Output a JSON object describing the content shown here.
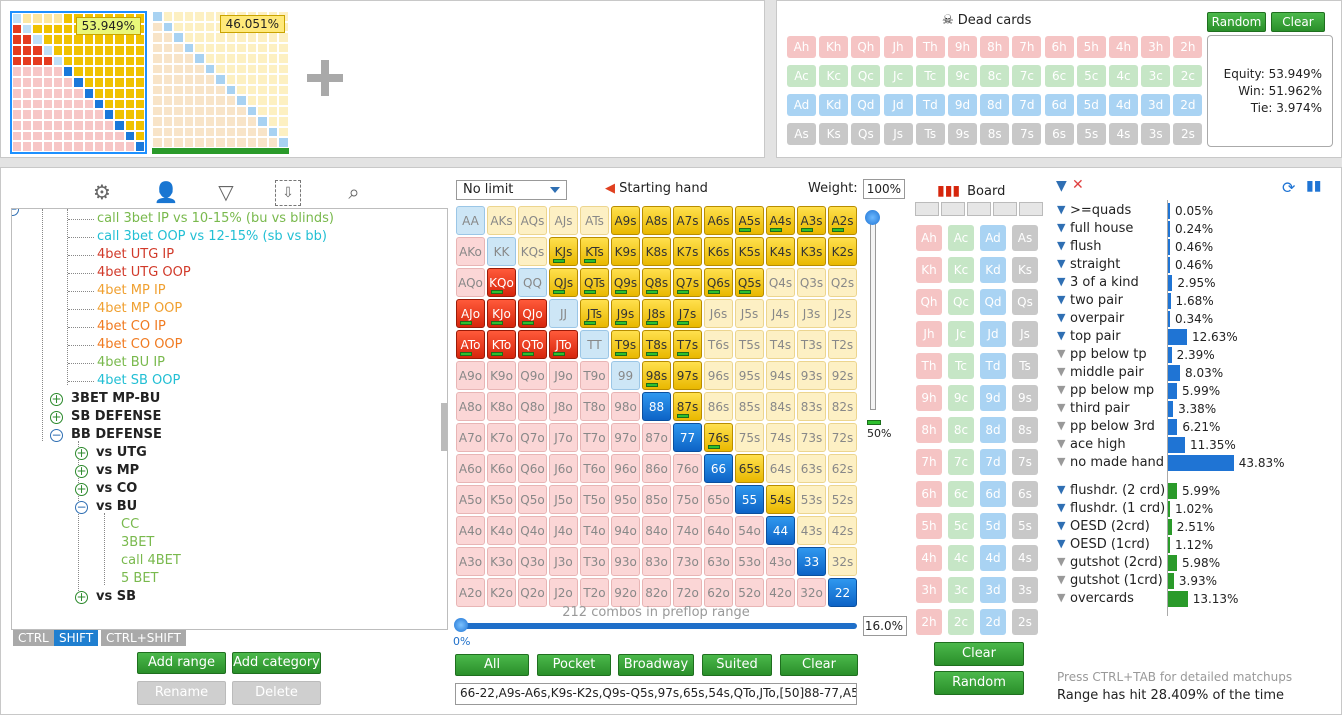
{
  "thumbs": {
    "eq1": "53.949%",
    "eq2": "46.051%"
  },
  "dead": {
    "title": "Dead cards",
    "random": "Random",
    "clear": "Clear",
    "rows": [
      [
        "Ah",
        "Kh",
        "Qh",
        "Jh",
        "Th",
        "9h",
        "8h",
        "7h",
        "6h",
        "5h",
        "4h",
        "3h",
        "2h"
      ],
      [
        "Ac",
        "Kc",
        "Qc",
        "Jc",
        "Tc",
        "9c",
        "8c",
        "7c",
        "6c",
        "5c",
        "4c",
        "3c",
        "2c"
      ],
      [
        "Ad",
        "Kd",
        "Qd",
        "Jd",
        "Td",
        "9d",
        "8d",
        "7d",
        "6d",
        "5d",
        "4d",
        "3d",
        "2d"
      ],
      [
        "As",
        "Ks",
        "Qs",
        "Js",
        "Ts",
        "9s",
        "8s",
        "7s",
        "6s",
        "5s",
        "4s",
        "3s",
        "2s"
      ]
    ],
    "equity": "Equity: 53.949%",
    "win": "Win: 51.962%",
    "tie": "Tie: 3.974%"
  },
  "tree": {
    "items": [
      "call 3bet IP vs 10-15% (bu vs blinds)",
      "call 3bet OOP vs 12-15% (sb vs bb)",
      "4bet UTG IP",
      "4bet UTG OOP",
      "4bet MP IP",
      "4bet MP OOP",
      "4bet CO IP",
      "4bet CO OOP",
      "4bet BU IP",
      "4bet SB OOP"
    ],
    "groups": [
      "3BET MP-BU",
      "SB DEFENSE",
      "BB DEFENSE",
      "vs UTG",
      "vs MP",
      "vs CO",
      "vs BU",
      "CC",
      "3BET",
      "call 4BET",
      "5 BET",
      "vs SB"
    ],
    "tabs": [
      "CTRL",
      "SHIFT",
      "CTRL+SHIFT"
    ],
    "add_range": "Add range",
    "add_category": "Add category",
    "rename": "Rename",
    "delete": "Delete"
  },
  "range": {
    "limit": "No limit",
    "starting_hand": "Starting hand",
    "weight_label": "Weight:",
    "weight": "100%",
    "slider_pct": "50%",
    "combos": "212 combos in preflop range",
    "min": "0%",
    "pct": "16.0%",
    "buttons": [
      "All",
      "Pocket",
      "Broadway",
      "Suited",
      "Clear"
    ],
    "text": "66-22,A9s-A6s,K9s-K2s,Q9s-Q5s,97s,65s,54s,QTo,JTo,[50]88-77,A5"
  },
  "board": {
    "title": "Board",
    "clear": "Clear",
    "random": "Random",
    "rows": [
      [
        "Ah",
        "Ac",
        "Ad",
        "As"
      ],
      [
        "Kh",
        "Kc",
        "Kd",
        "Ks"
      ],
      [
        "Qh",
        "Qc",
        "Qd",
        "Qs"
      ],
      [
        "Jh",
        "Jc",
        "Jd",
        "Js"
      ],
      [
        "Th",
        "Tc",
        "Td",
        "Ts"
      ],
      [
        "9h",
        "9c",
        "9d",
        "9s"
      ],
      [
        "8h",
        "8c",
        "8d",
        "8s"
      ],
      [
        "7h",
        "7c",
        "7d",
        "7s"
      ],
      [
        "6h",
        "6c",
        "6d",
        "6s"
      ],
      [
        "5h",
        "5c",
        "5d",
        "5s"
      ],
      [
        "4h",
        "4c",
        "4d",
        "4s"
      ],
      [
        "3h",
        "3c",
        "3d",
        "3s"
      ],
      [
        "2h",
        "2c",
        "2d",
        "2s"
      ]
    ]
  },
  "stats": {
    "made": [
      [
        "&gt;=quads",
        "0.05%",
        0.05
      ],
      [
        "full house",
        "0.24%",
        0.24
      ],
      [
        "flush",
        "0.46%",
        0.46
      ],
      [
        "straight",
        "0.46%",
        0.46
      ],
      [
        "3 of a kind",
        "2.95%",
        2.95
      ],
      [
        "two pair",
        "1.68%",
        1.68
      ],
      [
        "overpair",
        "0.34%",
        0.34
      ],
      [
        "top pair",
        "12.63%",
        12.63
      ],
      [
        "pp below tp",
        "2.39%",
        2.39
      ],
      [
        "middle pair",
        "8.03%",
        8.03
      ],
      [
        "pp below mp",
        "5.99%",
        5.99
      ],
      [
        "third pair",
        "3.38%",
        3.38
      ],
      [
        "pp below 3rd",
        "6.21%",
        6.21
      ],
      [
        "ace high",
        "11.35%",
        11.35
      ],
      [
        "no made hand",
        "43.83%",
        43.83
      ]
    ],
    "draws": [
      [
        "flushdr. (2 crd)",
        "5.99%",
        5.99
      ],
      [
        "flushdr. (1 crd)",
        "1.02%",
        1.02
      ],
      [
        "OESD (2crd)",
        "2.51%",
        2.51
      ],
      [
        "OESD (1crd)",
        "1.12%",
        1.12
      ],
      [
        "gutshot (2crd)",
        "5.98%",
        5.98
      ],
      [
        "gutshot (1crd)",
        "3.93%",
        3.93
      ],
      [
        "overcards",
        "13.13%",
        13.13
      ]
    ],
    "hint": "Press CTRL+TAB for detailed matchups",
    "hit": "Range has hit 28.409% of the time"
  },
  "grid_hands": [
    [
      "AA",
      "AKs",
      "AQs",
      "AJs",
      "ATs",
      "A9s",
      "A8s",
      "A7s",
      "A6s",
      "A5s",
      "A4s",
      "A3s",
      "A2s"
    ],
    [
      "AKo",
      "KK",
      "KQs",
      "KJs",
      "KTs",
      "K9s",
      "K8s",
      "K7s",
      "K6s",
      "K5s",
      "K4s",
      "K3s",
      "K2s"
    ],
    [
      "AQo",
      "KQo",
      "QQ",
      "QJs",
      "QTs",
      "Q9s",
      "Q8s",
      "Q7s",
      "Q6s",
      "Q5s",
      "Q4s",
      "Q3s",
      "Q2s"
    ],
    [
      "AJo",
      "KJo",
      "QJo",
      "JJ",
      "JTs",
      "J9s",
      "J8s",
      "J7s",
      "J6s",
      "J5s",
      "J4s",
      "J3s",
      "J2s"
    ],
    [
      "ATo",
      "KTo",
      "QTo",
      "JTo",
      "TT",
      "T9s",
      "T8s",
      "T7s",
      "T6s",
      "T5s",
      "T4s",
      "T3s",
      "T2s"
    ],
    [
      "A9o",
      "K9o",
      "Q9o",
      "J9o",
      "T9o",
      "99",
      "98s",
      "97s",
      "96s",
      "95s",
      "94s",
      "93s",
      "92s"
    ],
    [
      "A8o",
      "K8o",
      "Q8o",
      "J8o",
      "T8o",
      "98o",
      "88",
      "87s",
      "86s",
      "85s",
      "84s",
      "83s",
      "82s"
    ],
    [
      "A7o",
      "K7o",
      "Q7o",
      "J7o",
      "T7o",
      "97o",
      "87o",
      "77",
      "76s",
      "75s",
      "74s",
      "73s",
      "72s"
    ],
    [
      "A6o",
      "K6o",
      "Q6o",
      "J6o",
      "T6o",
      "96o",
      "86o",
      "76o",
      "66",
      "65s",
      "64s",
      "63s",
      "62s"
    ],
    [
      "A5o",
      "K5o",
      "Q5o",
      "J5o",
      "T5o",
      "95o",
      "85o",
      "75o",
      "65o",
      "55",
      "54s",
      "53s",
      "52s"
    ],
    [
      "A4o",
      "K4o",
      "Q4o",
      "J4o",
      "T4o",
      "94o",
      "84o",
      "74o",
      "64o",
      "54o",
      "44",
      "43s",
      "42s"
    ],
    [
      "A3o",
      "K3o",
      "Q3o",
      "J3o",
      "T3o",
      "93o",
      "83o",
      "73o",
      "63o",
      "53o",
      "43o",
      "33",
      "32s"
    ],
    [
      "A2o",
      "K2o",
      "Q2o",
      "J2o",
      "T2o",
      "92o",
      "82o",
      "72o",
      "62o",
      "52o",
      "42o",
      "32o",
      "22"
    ]
  ]
}
